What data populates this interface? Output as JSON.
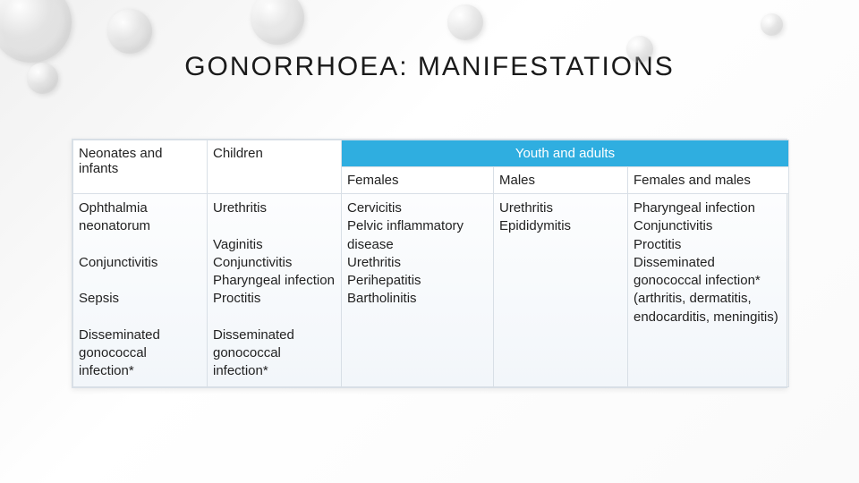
{
  "title": "GONORRHOEA: MANIFESTATIONS",
  "headers": {
    "neonates": "Neonates and infants",
    "children": "Children",
    "youth_adults": "Youth and adults",
    "females": "Females",
    "males": "Males",
    "females_males": "Females and males"
  },
  "cells": {
    "neonates_body": "Ophthalmia neonatorum\n\nConjunctivitis\n\nSepsis\n\nDisseminated gonococcal infection*",
    "children_body": "Urethritis\n\nVaginitis\nConjunctivitis\nPharyngeal infection\nProctitis\n\nDisseminated gonococcal infection*",
    "females_body": "Cervicitis\nPelvic inflammatory disease\nUrethritis\nPerihepatitis\nBartholinitis",
    "males_body": "Urethritis\nEpididymitis",
    "females_males_body": "Pharyngeal infection\nConjunctivitis\nProctitis\nDisseminated gonococcal infection* (arthritis, dermatitis, endocarditis, meningitis)"
  },
  "style": {
    "header_bg": "#2faee0",
    "header_fg": "#ffffff",
    "border_color": "#d8dfe6",
    "body_bg_top": "#ffffff",
    "body_bg_bottom": "#f2f6fa",
    "title_fontsize": 30,
    "cell_fontsize": 15
  }
}
